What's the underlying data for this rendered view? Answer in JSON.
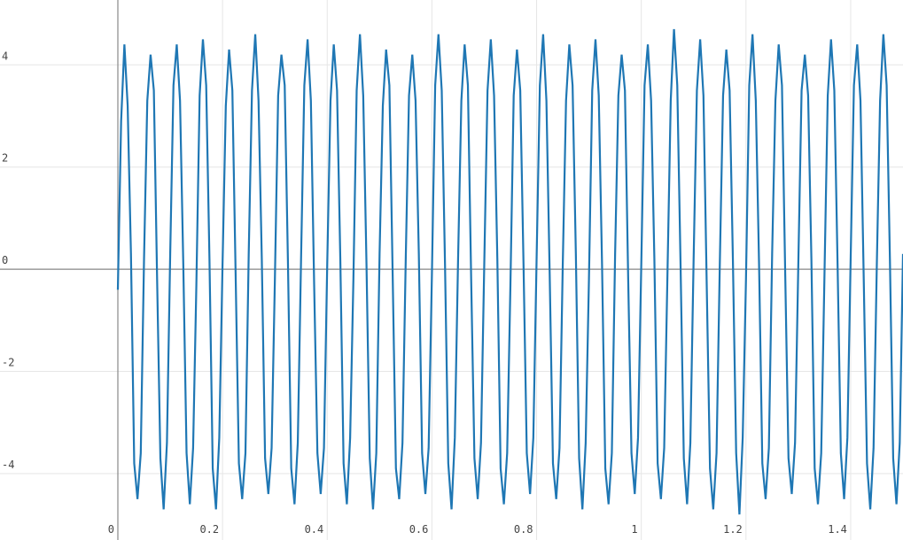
{
  "chart_data": {
    "type": "line",
    "x": [
      0,
      0.00625,
      0.0125,
      0.01875,
      0.025,
      0.03125,
      0.0375,
      0.04375,
      0.05,
      0.05625,
      0.0625,
      0.06875,
      0.075,
      0.08125,
      0.0875,
      0.09375,
      0.1,
      0.10625,
      0.1125,
      0.11875,
      0.125,
      0.13125,
      0.1375,
      0.14375,
      0.15,
      0.15625,
      0.1625,
      0.16875,
      0.175,
      0.18125,
      0.1875,
      0.19375,
      0.2,
      0.20625,
      0.2125,
      0.21875,
      0.225,
      0.23125,
      0.2375,
      0.24375,
      0.25,
      0.25625,
      0.2625,
      0.26875,
      0.275,
      0.28125,
      0.2875,
      0.29375,
      0.3,
      0.30625,
      0.3125,
      0.31875,
      0.325,
      0.33125,
      0.3375,
      0.34375,
      0.35,
      0.35625,
      0.3625,
      0.36875,
      0.375,
      0.38125,
      0.3875,
      0.39375,
      0.4,
      0.40625,
      0.4125,
      0.41875,
      0.425,
      0.43125,
      0.4375,
      0.44375,
      0.45,
      0.45625,
      0.4625,
      0.46875,
      0.475,
      0.48125,
      0.4875,
      0.49375,
      0.5,
      0.50625,
      0.5125,
      0.51875,
      0.525,
      0.53125,
      0.5375,
      0.54375,
      0.55,
      0.55625,
      0.5625,
      0.56875,
      0.575,
      0.58125,
      0.5875,
      0.59375,
      0.6,
      0.60625,
      0.6125,
      0.61875,
      0.625,
      0.63125,
      0.6375,
      0.64375,
      0.65,
      0.65625,
      0.6625,
      0.66875,
      0.675,
      0.68125,
      0.6875,
      0.69375,
      0.7,
      0.70625,
      0.7125,
      0.71875,
      0.725,
      0.73125,
      0.7375,
      0.74375,
      0.75,
      0.75625,
      0.7625,
      0.76875,
      0.775,
      0.78125,
      0.7875,
      0.79375,
      0.8,
      0.80625,
      0.8125,
      0.81875,
      0.825,
      0.83125,
      0.8375,
      0.84375,
      0.85,
      0.85625,
      0.8625,
      0.86875,
      0.875,
      0.88125,
      0.8875,
      0.89375,
      0.9,
      0.90625,
      0.9125,
      0.91875,
      0.925,
      0.93125,
      0.9375,
      0.94375,
      0.95,
      0.95625,
      0.9625,
      0.96875,
      0.975,
      0.98125,
      0.9875,
      0.99375,
      1,
      1.00625,
      1.0125,
      1.01875,
      1.025,
      1.03125,
      1.0375,
      1.04375,
      1.05,
      1.05625,
      1.0625,
      1.06875,
      1.075,
      1.08125,
      1.0875,
      1.09375,
      1.1,
      1.10625,
      1.1125,
      1.11875,
      1.125,
      1.13125,
      1.1375,
      1.14375,
      1.15,
      1.15625,
      1.1625,
      1.16875,
      1.175,
      1.18125,
      1.1875,
      1.19375,
      1.2,
      1.20625,
      1.2125,
      1.21875,
      1.225,
      1.23125,
      1.2375,
      1.24375,
      1.25,
      1.25625,
      1.2625,
      1.26875,
      1.275,
      1.28125,
      1.2875,
      1.29375,
      1.3,
      1.30625,
      1.3125,
      1.31875,
      1.325,
      1.33125,
      1.3375,
      1.34375,
      1.35,
      1.35625,
      1.3625,
      1.36875,
      1.375,
      1.38125,
      1.3875,
      1.39375,
      1.4,
      1.40625,
      1.4125,
      1.41875,
      1.425,
      1.43125,
      1.4375,
      1.44375,
      1.45,
      1.45625,
      1.4625,
      1.46875,
      1.475,
      1.48125,
      1.4875,
      1.49375,
      1.5
    ],
    "series": [
      {
        "color": "#1f77b4",
        "values": [
          -0.4,
          2.9,
          4.4,
          3.2,
          0.3,
          -3.8,
          -4.5,
          -3.6,
          0.2,
          3.3,
          4.2,
          3.5,
          -0.2,
          -3.7,
          -4.7,
          -3.4,
          0.3,
          3.6,
          4.4,
          3.3,
          0.1,
          -3.6,
          -4.6,
          -3.5,
          -0.3,
          3.4,
          4.5,
          3.6,
          0.2,
          -3.9,
          -4.7,
          -3.3,
          0.1,
          3.2,
          4.3,
          3.5,
          -0.1,
          -3.8,
          -4.5,
          -3.6,
          0.3,
          3.5,
          4.6,
          3.3,
          0.2,
          -3.7,
          -4.4,
          -3.5,
          -0.2,
          3.4,
          4.2,
          3.6,
          0.1,
          -3.9,
          -4.6,
          -3.4,
          0.2,
          3.6,
          4.5,
          3.3,
          -0.3,
          -3.6,
          -4.4,
          -3.5,
          0.1,
          3.3,
          4.4,
          3.5,
          0.2,
          -3.8,
          -4.6,
          -3.3,
          -0.2,
          3.5,
          4.6,
          3.4,
          0.1,
          -3.7,
          -4.7,
          -3.6,
          0.3,
          3.2,
          4.3,
          3.6,
          -0.1,
          -3.9,
          -4.5,
          -3.4,
          0.2,
          3.4,
          4.2,
          3.3,
          0.3,
          -3.6,
          -4.4,
          -3.5,
          -0.1,
          3.6,
          4.6,
          3.5,
          0.1,
          -3.8,
          -4.7,
          -3.3,
          0.2,
          3.3,
          4.4,
          3.6,
          -0.2,
          -3.7,
          -4.5,
          -3.4,
          0.1,
          3.5,
          4.5,
          3.4,
          0.2,
          -3.9,
          -4.6,
          -3.6,
          -0.3,
          3.4,
          4.3,
          3.5,
          0.1,
          -3.6,
          -4.4,
          -3.3,
          0.2,
          3.6,
          4.6,
          3.3,
          -0.1,
          -3.8,
          -4.5,
          -3.5,
          0.1,
          3.3,
          4.4,
          3.6,
          0.3,
          -3.7,
          -4.7,
          -3.4,
          -0.2,
          3.5,
          4.5,
          3.4,
          0.1,
          -3.9,
          -4.6,
          -3.6,
          0.3,
          3.4,
          4.2,
          3.5,
          -0.2,
          -3.6,
          -4.4,
          -3.3,
          0.1,
          3.6,
          4.4,
          3.3,
          0.2,
          -3.8,
          -4.5,
          -3.5,
          -0.1,
          3.3,
          4.7,
          3.6,
          0.1,
          -3.7,
          -4.6,
          -3.4,
          0.2,
          3.5,
          4.5,
          3.4,
          -0.3,
          -3.9,
          -4.7,
          -3.6,
          0.1,
          3.4,
          4.3,
          3.5,
          0.2,
          -3.6,
          -4.8,
          -3.3,
          -0.2,
          3.6,
          4.6,
          3.3,
          0.1,
          -3.8,
          -4.5,
          -3.5,
          0.3,
          3.3,
          4.4,
          3.6,
          -0.1,
          -3.7,
          -4.4,
          -3.4,
          0.1,
          3.5,
          4.2,
          3.4,
          0.2,
          -3.9,
          -4.6,
          -3.6,
          -0.1,
          3.4,
          4.5,
          3.5,
          0.1,
          -3.6,
          -4.5,
          -3.3,
          0.2,
          3.6,
          4.4,
          3.3,
          -0.2,
          -3.8,
          -4.7,
          -3.5,
          0.1,
          3.3,
          4.6,
          3.6,
          0.2,
          -3.7,
          -4.6,
          -3.4,
          0.3
        ]
      }
    ],
    "xlim": [
      0,
      1.5
    ],
    "ylim": [
      -5.3,
      5.27
    ],
    "xticks": [
      0,
      0.2,
      0.4,
      0.6,
      0.8,
      1,
      1.2,
      1.4
    ],
    "yticks": [
      -4,
      -2,
      0,
      2,
      4
    ],
    "grid": true
  }
}
